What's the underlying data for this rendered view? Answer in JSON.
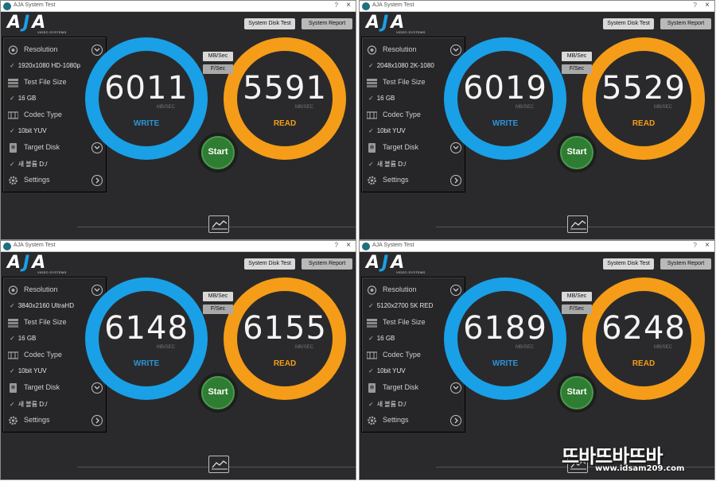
{
  "colors": {
    "write_ring": "#1aa0e6",
    "read_ring": "#f59d18",
    "start_button": "#2e7d32",
    "window_bg": "#2a2a2c"
  },
  "icons": {
    "resolution": "aperture-icon",
    "test_file_size": "stacked-disks-icon",
    "codec_type": "film-grid-icon",
    "target_disk": "disk-drive-icon",
    "settings": "gear-icon",
    "expand": "chevron-down-icon",
    "settings_open": "chevron-right-icon",
    "graph": "line-chart-icon"
  },
  "windows": [
    {
      "title": "AJA System Test",
      "logo_text": "AJA",
      "logo_sub": "VIDEO SYSTEMS",
      "help": "?",
      "close": "×",
      "btn_disk": "System Disk Test",
      "btn_report": "System Report",
      "resolution_label": "Resolution",
      "resolution_value": "1920x1080 HD-1080p",
      "filesize_label": "Test File Size",
      "filesize_value": "16 GB",
      "codec_label": "Codec Type",
      "codec_value": "10bit YUV",
      "disk_label": "Target Disk",
      "disk_value": "새 볼륨 D:/",
      "settings_label": "Settings",
      "check": "✓",
      "write_value": "6011",
      "read_value": "5591",
      "unit": "MB/SEC",
      "write_caption": "WRITE",
      "read_caption": "READ",
      "mb_btn": "MB/Sec",
      "fs_btn": "F/Sec",
      "start": "Start"
    },
    {
      "title": "AJA System Test",
      "logo_text": "AJA",
      "logo_sub": "VIDEO SYSTEMS",
      "help": "?",
      "close": "×",
      "btn_disk": "System Disk Test",
      "btn_report": "System Report",
      "resolution_label": "Resolution",
      "resolution_value": "2048x1080 2K-1080",
      "filesize_label": "Test File Size",
      "filesize_value": "16 GB",
      "codec_label": "Codec Type",
      "codec_value": "10bit YUV",
      "disk_label": "Target Disk",
      "disk_value": "새 볼륨 D:/",
      "settings_label": "Settings",
      "check": "✓",
      "write_value": "6019",
      "read_value": "5529",
      "unit": "MB/SEC",
      "write_caption": "WRITE",
      "read_caption": "READ",
      "mb_btn": "MB/Sec",
      "fs_btn": "F/Sec",
      "start": "Start"
    },
    {
      "title": "AJA System Test",
      "logo_text": "AJA",
      "logo_sub": "VIDEO SYSTEMS",
      "help": "?",
      "close": "×",
      "btn_disk": "System Disk Test",
      "btn_report": "System Report",
      "resolution_label": "Resolution",
      "resolution_value": "3840x2160 UltraHD",
      "filesize_label": "Test File Size",
      "filesize_value": "16 GB",
      "codec_label": "Codec Type",
      "codec_value": "10bit YUV",
      "disk_label": "Target Disk",
      "disk_value": "새 볼륨 D:/",
      "settings_label": "Settings",
      "check": "✓",
      "write_value": "6148",
      "read_value": "6155",
      "unit": "MB/SEC",
      "write_caption": "WRITE",
      "read_caption": "READ",
      "mb_btn": "MB/Sec",
      "fs_btn": "F/Sec",
      "start": "Start"
    },
    {
      "title": "AJA System Test",
      "logo_text": "AJA",
      "logo_sub": "VIDEO SYSTEMS",
      "help": "?",
      "close": "×",
      "btn_disk": "System Disk Test",
      "btn_report": "System Report",
      "resolution_label": "Resolution",
      "resolution_value": "5120x2700 5K RED",
      "filesize_label": "Test File Size",
      "filesize_value": "16 GB",
      "codec_label": "Codec Type",
      "codec_value": "10bit YUV",
      "disk_label": "Target Disk",
      "disk_value": "새 볼륨 D:/",
      "settings_label": "Settings",
      "check": "✓",
      "write_value": "6189",
      "read_value": "6248",
      "unit": "MB/SEC",
      "write_caption": "WRITE",
      "read_caption": "READ",
      "mb_btn": "MB/Sec",
      "fs_btn": "F/Sec",
      "start": "Start"
    }
  ],
  "watermark": {
    "brand": "뜨바뜨바뜨바",
    "url": "www.idsam209.com"
  }
}
